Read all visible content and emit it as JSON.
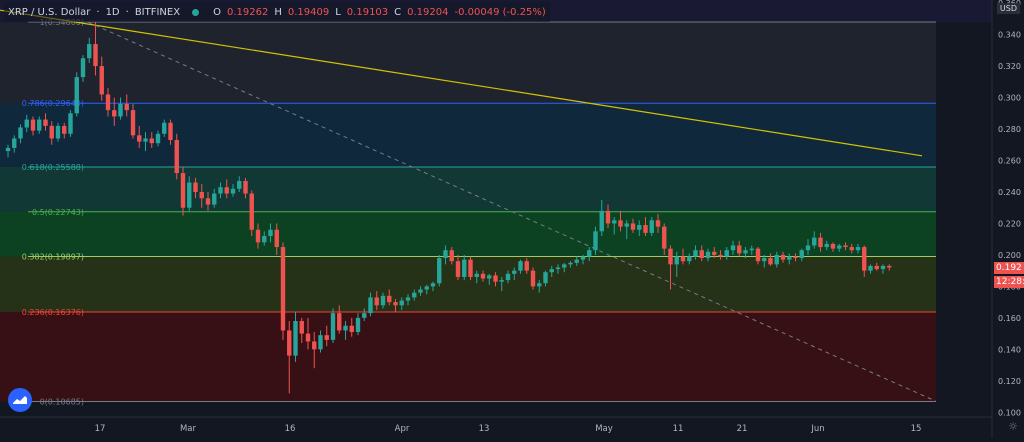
{
  "header": {
    "symbol": "XRP / U.S. Dollar",
    "interval": "1D",
    "exchange": "BITFINEX",
    "open_label": "O",
    "open": "0.19262",
    "high_label": "H",
    "high": "0.19409",
    "low_label": "L",
    "low": "0.19103",
    "close_label": "C",
    "close": "0.19204",
    "change": "-0.00049 (-0.25%)"
  },
  "currency": "USD",
  "price_tag": "0.192",
  "time_tag": "12:28:",
  "colors": {
    "background": "#131722",
    "up": "#26a69a",
    "down": "#ef5350",
    "trendline": "#d4c300",
    "dashed": "#787b86",
    "fib_line_100": "#787b86",
    "fib_line_786": "#2962ff",
    "fib_line_618": "#26a69a",
    "fib_line_500": "#4caf50",
    "fib_line_382": "#9ccc65",
    "fib_line_236": "#f44336",
    "fib_line_0": "#787b86"
  },
  "icons": {
    "logo": "tradingview-logo-icon",
    "settings": "gear-icon"
  },
  "chart_data": {
    "type": "candlestick",
    "x_tick_labels": [
      "17",
      "Mar",
      "16",
      "Apr",
      "13",
      "May",
      "11",
      "21",
      "Jun",
      "15"
    ],
    "y_tick_labels": [
      "0.360",
      "0.340",
      "0.320",
      "0.300",
      "0.280",
      "0.260",
      "0.240",
      "0.220",
      "0.200",
      "0.180",
      "0.160",
      "0.140",
      "0.120",
      "0.100"
    ],
    "ylim": [
      0.097,
      0.362
    ],
    "fib_levels": [
      {
        "ratio": "1",
        "price": 0.348,
        "label": "1(0.34800)"
      },
      {
        "ratio": "0.786",
        "price": 0.2964,
        "label": "0.786(0.29640)"
      },
      {
        "ratio": "0.618",
        "price": 0.25588,
        "label": "0.618(0.25588)"
      },
      {
        "ratio": "0.5",
        "price": 0.22743,
        "label": "0.5(0.22743)"
      },
      {
        "ratio": "0.382",
        "price": 0.19897,
        "label": "0.382(0.19897)"
      },
      {
        "ratio": "0.236",
        "price": 0.16376,
        "label": "0.236(0.16376)"
      },
      {
        "ratio": "0",
        "price": 0.10685,
        "label": "0(0.10685)"
      }
    ],
    "trendline": [
      [
        0.353,
        0
      ],
      [
        0.263,
        307
      ]
    ],
    "dashed_line": [
      [
        0.348,
        0
      ],
      [
        0.107,
        287
      ]
    ],
    "candles": [
      [
        0.266,
        0.27,
        0.262,
        0.268
      ],
      [
        0.268,
        0.276,
        0.265,
        0.274
      ],
      [
        0.274,
        0.283,
        0.271,
        0.281
      ],
      [
        0.281,
        0.289,
        0.278,
        0.286
      ],
      [
        0.286,
        0.288,
        0.276,
        0.279
      ],
      [
        0.279,
        0.288,
        0.277,
        0.286
      ],
      [
        0.286,
        0.29,
        0.279,
        0.282
      ],
      [
        0.282,
        0.285,
        0.27,
        0.274
      ],
      [
        0.274,
        0.284,
        0.272,
        0.282
      ],
      [
        0.282,
        0.284,
        0.274,
        0.277
      ],
      [
        0.277,
        0.292,
        0.275,
        0.29
      ],
      [
        0.29,
        0.316,
        0.288,
        0.313
      ],
      [
        0.313,
        0.327,
        0.31,
        0.325
      ],
      [
        0.325,
        0.338,
        0.322,
        0.334
      ],
      [
        0.334,
        0.348,
        0.314,
        0.32
      ],
      [
        0.32,
        0.326,
        0.298,
        0.302
      ],
      [
        0.302,
        0.306,
        0.288,
        0.292
      ],
      [
        0.292,
        0.3,
        0.282,
        0.288
      ],
      [
        0.288,
        0.3,
        0.286,
        0.296
      ],
      [
        0.296,
        0.302,
        0.288,
        0.292
      ],
      [
        0.292,
        0.296,
        0.274,
        0.276
      ],
      [
        0.276,
        0.282,
        0.268,
        0.272
      ],
      [
        0.272,
        0.278,
        0.266,
        0.274
      ],
      [
        0.274,
        0.278,
        0.268,
        0.271
      ],
      [
        0.271,
        0.279,
        0.269,
        0.277
      ],
      [
        0.277,
        0.286,
        0.275,
        0.284
      ],
      [
        0.284,
        0.286,
        0.27,
        0.273
      ],
      [
        0.273,
        0.277,
        0.248,
        0.252
      ],
      [
        0.252,
        0.256,
        0.225,
        0.23
      ],
      [
        0.23,
        0.25,
        0.228,
        0.246
      ],
      [
        0.246,
        0.249,
        0.236,
        0.24
      ],
      [
        0.24,
        0.245,
        0.23,
        0.236
      ],
      [
        0.236,
        0.24,
        0.228,
        0.232
      ],
      [
        0.232,
        0.242,
        0.23,
        0.239
      ],
      [
        0.239,
        0.246,
        0.236,
        0.243
      ],
      [
        0.243,
        0.248,
        0.236,
        0.239
      ],
      [
        0.239,
        0.245,
        0.237,
        0.242
      ],
      [
        0.242,
        0.25,
        0.24,
        0.247
      ],
      [
        0.247,
        0.249,
        0.236,
        0.239
      ],
      [
        0.239,
        0.241,
        0.212,
        0.216
      ],
      [
        0.216,
        0.22,
        0.204,
        0.208
      ],
      [
        0.208,
        0.215,
        0.206,
        0.212
      ],
      [
        0.212,
        0.22,
        0.208,
        0.216
      ],
      [
        0.216,
        0.22,
        0.2,
        0.205
      ],
      [
        0.205,
        0.208,
        0.146,
        0.152
      ],
      [
        0.152,
        0.158,
        0.112,
        0.136
      ],
      [
        0.136,
        0.164,
        0.132,
        0.158
      ],
      [
        0.158,
        0.16,
        0.144,
        0.15
      ],
      [
        0.15,
        0.16,
        0.14,
        0.145
      ],
      [
        0.145,
        0.151,
        0.128,
        0.14
      ],
      [
        0.14,
        0.152,
        0.138,
        0.149
      ],
      [
        0.149,
        0.155,
        0.142,
        0.146
      ],
      [
        0.146,
        0.166,
        0.144,
        0.163
      ],
      [
        0.163,
        0.168,
        0.15,
        0.152
      ],
      [
        0.152,
        0.158,
        0.146,
        0.155
      ],
      [
        0.155,
        0.16,
        0.148,
        0.151
      ],
      [
        0.151,
        0.163,
        0.149,
        0.16
      ],
      [
        0.16,
        0.166,
        0.158,
        0.163
      ],
      [
        0.163,
        0.176,
        0.161,
        0.173
      ],
      [
        0.173,
        0.177,
        0.165,
        0.168
      ],
      [
        0.168,
        0.176,
        0.166,
        0.174
      ],
      [
        0.174,
        0.178,
        0.168,
        0.17
      ],
      [
        0.17,
        0.172,
        0.164,
        0.168
      ],
      [
        0.168,
        0.173,
        0.165,
        0.171
      ],
      [
        0.171,
        0.175,
        0.168,
        0.173
      ],
      [
        0.173,
        0.178,
        0.171,
        0.176
      ],
      [
        0.176,
        0.18,
        0.174,
        0.178
      ],
      [
        0.178,
        0.181,
        0.175,
        0.18
      ],
      [
        0.18,
        0.183,
        0.177,
        0.182
      ],
      [
        0.182,
        0.2,
        0.18,
        0.198
      ],
      [
        0.198,
        0.206,
        0.194,
        0.203
      ],
      [
        0.203,
        0.205,
        0.194,
        0.196
      ],
      [
        0.196,
        0.2,
        0.184,
        0.186
      ],
      [
        0.186,
        0.2,
        0.184,
        0.197
      ],
      [
        0.197,
        0.199,
        0.184,
        0.186
      ],
      [
        0.186,
        0.19,
        0.182,
        0.188
      ],
      [
        0.188,
        0.19,
        0.183,
        0.185
      ],
      [
        0.185,
        0.188,
        0.181,
        0.187
      ],
      [
        0.187,
        0.189,
        0.18,
        0.183
      ],
      [
        0.183,
        0.186,
        0.177,
        0.184
      ],
      [
        0.184,
        0.19,
        0.182,
        0.188
      ],
      [
        0.188,
        0.192,
        0.184,
        0.19
      ],
      [
        0.19,
        0.197,
        0.188,
        0.196
      ],
      [
        0.196,
        0.198,
        0.188,
        0.19
      ],
      [
        0.19,
        0.192,
        0.178,
        0.18
      ],
      [
        0.18,
        0.184,
        0.176,
        0.182
      ],
      [
        0.182,
        0.19,
        0.18,
        0.189
      ],
      [
        0.189,
        0.193,
        0.186,
        0.191
      ],
      [
        0.191,
        0.194,
        0.188,
        0.192
      ],
      [
        0.192,
        0.195,
        0.189,
        0.194
      ],
      [
        0.194,
        0.196,
        0.192,
        0.195
      ],
      [
        0.195,
        0.199,
        0.193,
        0.197
      ],
      [
        0.197,
        0.2,
        0.194,
        0.199
      ],
      [
        0.199,
        0.205,
        0.196,
        0.203
      ],
      [
        0.203,
        0.218,
        0.2,
        0.215
      ],
      [
        0.215,
        0.235,
        0.212,
        0.228
      ],
      [
        0.228,
        0.232,
        0.217,
        0.22
      ],
      [
        0.22,
        0.224,
        0.213,
        0.222
      ],
      [
        0.222,
        0.228,
        0.215,
        0.218
      ],
      [
        0.218,
        0.222,
        0.21,
        0.22
      ],
      [
        0.22,
        0.223,
        0.214,
        0.216
      ],
      [
        0.216,
        0.222,
        0.212,
        0.219
      ],
      [
        0.219,
        0.224,
        0.212,
        0.214
      ],
      [
        0.214,
        0.224,
        0.212,
        0.222
      ],
      [
        0.222,
        0.226,
        0.214,
        0.218
      ],
      [
        0.218,
        0.22,
        0.2,
        0.204
      ],
      [
        0.204,
        0.206,
        0.178,
        0.194
      ],
      [
        0.194,
        0.202,
        0.186,
        0.199
      ],
      [
        0.199,
        0.204,
        0.194,
        0.196
      ],
      [
        0.196,
        0.201,
        0.194,
        0.199
      ],
      [
        0.199,
        0.206,
        0.197,
        0.203
      ],
      [
        0.203,
        0.206,
        0.196,
        0.198
      ],
      [
        0.198,
        0.204,
        0.196,
        0.202
      ],
      [
        0.202,
        0.205,
        0.198,
        0.2
      ],
      [
        0.2,
        0.203,
        0.197,
        0.199
      ],
      [
        0.199,
        0.205,
        0.197,
        0.203
      ],
      [
        0.203,
        0.209,
        0.2,
        0.206
      ],
      [
        0.206,
        0.209,
        0.199,
        0.201
      ],
      [
        0.201,
        0.205,
        0.198,
        0.203
      ],
      [
        0.203,
        0.206,
        0.2,
        0.204
      ],
      [
        0.204,
        0.205,
        0.194,
        0.196
      ],
      [
        0.196,
        0.2,
        0.192,
        0.198
      ],
      [
        0.198,
        0.201,
        0.193,
        0.194
      ],
      [
        0.194,
        0.202,
        0.192,
        0.2
      ],
      [
        0.2,
        0.202,
        0.195,
        0.197
      ],
      [
        0.197,
        0.201,
        0.194,
        0.199
      ],
      [
        0.199,
        0.201,
        0.196,
        0.198
      ],
      [
        0.198,
        0.204,
        0.196,
        0.203
      ],
      [
        0.203,
        0.21,
        0.2,
        0.206
      ],
      [
        0.206,
        0.215,
        0.204,
        0.211
      ],
      [
        0.211,
        0.214,
        0.202,
        0.205
      ],
      [
        0.205,
        0.209,
        0.203,
        0.207
      ],
      [
        0.207,
        0.208,
        0.202,
        0.204
      ],
      [
        0.204,
        0.207,
        0.202,
        0.206
      ],
      [
        0.206,
        0.208,
        0.203,
        0.205
      ],
      [
        0.205,
        0.207,
        0.201,
        0.203
      ],
      [
        0.203,
        0.207,
        0.201,
        0.205
      ],
      [
        0.205,
        0.206,
        0.186,
        0.19
      ],
      [
        0.19,
        0.194,
        0.188,
        0.193
      ],
      [
        0.193,
        0.195,
        0.19,
        0.191
      ],
      [
        0.191,
        0.194,
        0.188,
        0.193
      ],
      [
        0.193,
        0.194,
        0.19,
        0.192
      ]
    ]
  }
}
